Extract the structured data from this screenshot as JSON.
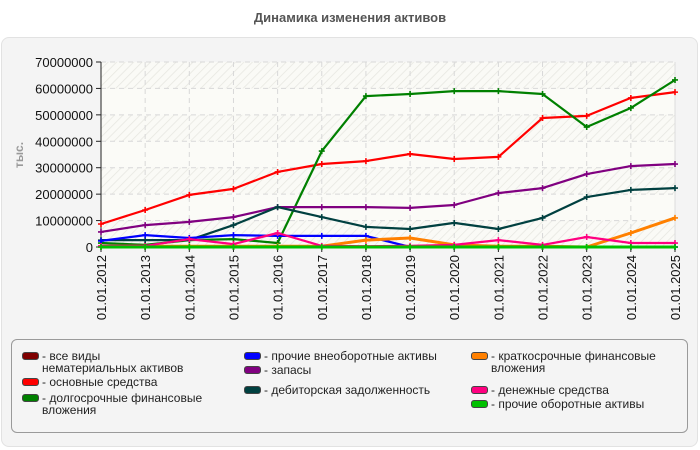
{
  "title": "Динамика изменения активов",
  "chart_data": {
    "type": "line",
    "title": "Динамика изменения активов",
    "xlabel": "",
    "ylabel": "тыс.",
    "ylim": [
      0,
      70000000
    ],
    "yticks": [
      "0",
      "10000000",
      "20000000",
      "30000000",
      "40000000",
      "50000000",
      "60000000",
      "70000000"
    ],
    "grid": true,
    "legend_position": "bottom",
    "categories": [
      "01.01.2012",
      "01.01.2013",
      "01.01.2014",
      "01.01.2015",
      "01.01.2016",
      "01.01.2017",
      "01.01.2018",
      "01.01.2019",
      "01.01.2020",
      "01.01.2021",
      "01.01.2022",
      "01.01.2023",
      "01.01.2024",
      "01.01.2025"
    ],
    "series": [
      {
        "name": "все виды нематериальных активов",
        "color": "#7f0000",
        "values": [
          0,
          0,
          0,
          0,
          0,
          0,
          0,
          0,
          0,
          0,
          0,
          0,
          0,
          0
        ]
      },
      {
        "name": "основные средства",
        "color": "#ff0000",
        "values": [
          8700000,
          14000000,
          19700000,
          22000000,
          28400000,
          31400000,
          32500000,
          35200000,
          33300000,
          34100000,
          48800000,
          49600000,
          56400000,
          58600000
        ]
      },
      {
        "name": "долгосрочные финансовые вложения",
        "color": "#008000",
        "values": [
          1500000,
          800000,
          2600000,
          3000000,
          1500000,
          36300000,
          57100000,
          57900000,
          59000000,
          59000000,
          57900000,
          45400000,
          52600000,
          63200000
        ]
      },
      {
        "name": "прочие внеоборотные активы",
        "color": "#0000ff",
        "values": [
          2300000,
          4500000,
          3400000,
          4500000,
          4200000,
          4200000,
          4200000,
          0,
          0,
          0,
          0,
          0,
          0,
          0
        ]
      },
      {
        "name": "запасы",
        "color": "#800080",
        "values": [
          5700000,
          8300000,
          9500000,
          11300000,
          15100000,
          15100000,
          15100000,
          14800000,
          15900000,
          20400000,
          22300000,
          27600000,
          30600000,
          31400000
        ]
      },
      {
        "name": "дебиторская задолженность",
        "color": "#004040",
        "values": [
          2600000,
          2600000,
          2600000,
          8300000,
          15100000,
          11300000,
          7600000,
          6800000,
          9100000,
          6800000,
          11000000,
          18900000,
          21600000,
          22300000
        ]
      },
      {
        "name": "краткосрочные финансовые вложения",
        "color": "#ff8000",
        "values": [
          300000,
          300000,
          300000,
          300000,
          300000,
          300000,
          2600000,
          3400000,
          800000,
          300000,
          300000,
          0,
          5300000,
          11000000
        ]
      },
      {
        "name": "денежные средства",
        "color": "#ff0080",
        "values": [
          400000,
          400000,
          3000000,
          1100000,
          5300000,
          400000,
          300000,
          400000,
          800000,
          2600000,
          800000,
          3800000,
          1500000,
          1500000
        ]
      },
      {
        "name": "прочие оборотные активы",
        "color": "#00c000",
        "values": [
          0,
          0,
          0,
          0,
          0,
          0,
          0,
          0,
          0,
          0,
          0,
          0,
          0,
          0
        ]
      }
    ]
  },
  "legend": [
    {
      "label": "- все виды нематериальных активов",
      "color": "#7f0000"
    },
    {
      "label": "- основные средства",
      "color": "#ff0000"
    },
    {
      "label": "- долгосрочные финансовые вложения",
      "color": "#008000"
    },
    {
      "label": "- прочие внеоборотные активы",
      "color": "#0000ff"
    },
    {
      "label": "- запасы",
      "color": "#800080"
    },
    {
      "label": "- дебиторская задолженность",
      "color": "#004040"
    },
    {
      "label": "- краткосрочные финансовые вложения",
      "color": "#ff8000"
    },
    {
      "label": "- денежные средства",
      "color": "#ff0080"
    },
    {
      "label": "- прочие оборотные активы",
      "color": "#00c000"
    }
  ]
}
